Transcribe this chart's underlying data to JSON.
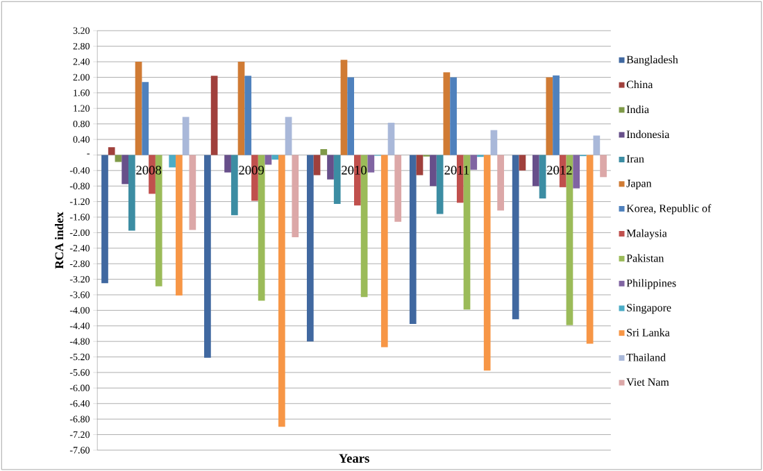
{
  "chart_data": {
    "type": "bar",
    "xlabel": "Years",
    "ylabel": "RCA  index",
    "categories": [
      "2008",
      "2009",
      "2010",
      "2011",
      "2012"
    ],
    "ylim": [
      -7.6,
      3.2
    ],
    "yticks": [
      {
        "value": 3.2,
        "label": "3.20"
      },
      {
        "value": 2.8,
        "label": "2.80"
      },
      {
        "value": 2.4,
        "label": "2.40"
      },
      {
        "value": 2.0,
        "label": "2.00"
      },
      {
        "value": 1.6,
        "label": "1.60"
      },
      {
        "value": 1.2,
        "label": "1.20"
      },
      {
        "value": 0.8,
        "label": "0.80"
      },
      {
        "value": 0.4,
        "label": "0.40"
      },
      {
        "value": 0,
        "label": "-"
      },
      {
        "value": -0.4,
        "label": "-0.40"
      },
      {
        "value": -0.8,
        "label": "-0.80"
      },
      {
        "value": -1.2,
        "label": "-1.20"
      },
      {
        "value": -1.6,
        "label": "-1.60"
      },
      {
        "value": -2.0,
        "label": "-2.00"
      },
      {
        "value": -2.4,
        "label": "-2.40"
      },
      {
        "value": -2.8,
        "label": "-2.80"
      },
      {
        "value": -3.2,
        "label": "-3.20"
      },
      {
        "value": -3.6,
        "label": "-3.60"
      },
      {
        "value": -4.0,
        "label": "-4.00"
      },
      {
        "value": -4.4,
        "label": "-4.40"
      },
      {
        "value": -4.8,
        "label": "-4.80"
      },
      {
        "value": -5.2,
        "label": "-5.20"
      },
      {
        "value": -5.6,
        "label": "-5.60"
      },
      {
        "value": -6.0,
        "label": "-6.00"
      },
      {
        "value": -6.4,
        "label": "-6.40"
      },
      {
        "value": -6.8,
        "label": "-6.80"
      },
      {
        "value": -7.2,
        "label": "-7.20"
      },
      {
        "value": -7.6,
        "label": "-7.60"
      }
    ],
    "grid": "y",
    "legend": "right",
    "series": [
      {
        "name": "Bangladesh",
        "color": "#4068a0",
        "values": [
          -3.3,
          -5.22,
          -4.8,
          -4.35,
          -4.23
        ]
      },
      {
        "name": "China",
        "color": "#a0403c",
        "values": [
          0.2,
          2.04,
          -0.52,
          -0.52,
          -0.4
        ]
      },
      {
        "name": "India",
        "color": "#7f9a48",
        "values": [
          -0.18,
          0,
          0.15,
          -0.04,
          0
        ]
      },
      {
        "name": "Indonesia",
        "color": "#674f8a",
        "values": [
          -0.75,
          -0.45,
          -0.63,
          -0.8,
          -0.8
        ]
      },
      {
        "name": "Iran",
        "color": "#3c8da3",
        "values": [
          -1.95,
          -1.55,
          -1.26,
          -1.52,
          -1.12
        ]
      },
      {
        "name": "Japan",
        "color": "#d07b34",
        "values": [
          2.4,
          2.4,
          2.45,
          2.13,
          2.0
        ]
      },
      {
        "name": "Korea, Republic of",
        "color": "#4f81bd",
        "values": [
          1.88,
          2.04,
          2.0,
          2.0,
          2.05
        ]
      },
      {
        "name": "Malaysia",
        "color": "#c0504d",
        "values": [
          -1.0,
          -1.18,
          -1.3,
          -1.23,
          -0.83
        ]
      },
      {
        "name": "Pakistan",
        "color": "#9bbb59",
        "values": [
          -3.38,
          -3.75,
          -3.66,
          -3.98,
          -4.38
        ]
      },
      {
        "name": "Philippines",
        "color": "#8064a2",
        "values": [
          0,
          -0.25,
          -0.45,
          -0.38,
          -0.86
        ]
      },
      {
        "name": "Singapore",
        "color": "#4bacc6",
        "values": [
          -0.32,
          -0.12,
          -0.02,
          -0.05,
          -0.03
        ]
      },
      {
        "name": "Sri Lanka",
        "color": "#f79646",
        "values": [
          -3.62,
          -7.0,
          -4.95,
          -5.55,
          -4.86
        ]
      },
      {
        "name": "Thailand",
        "color": "#a9b8d9",
        "values": [
          0.98,
          0.98,
          0.83,
          0.64,
          0.5
        ]
      },
      {
        "name": "Viet Nam",
        "color": "#dca8a8",
        "values": [
          -1.93,
          -2.12,
          -1.72,
          -1.43,
          -0.57
        ]
      }
    ]
  }
}
